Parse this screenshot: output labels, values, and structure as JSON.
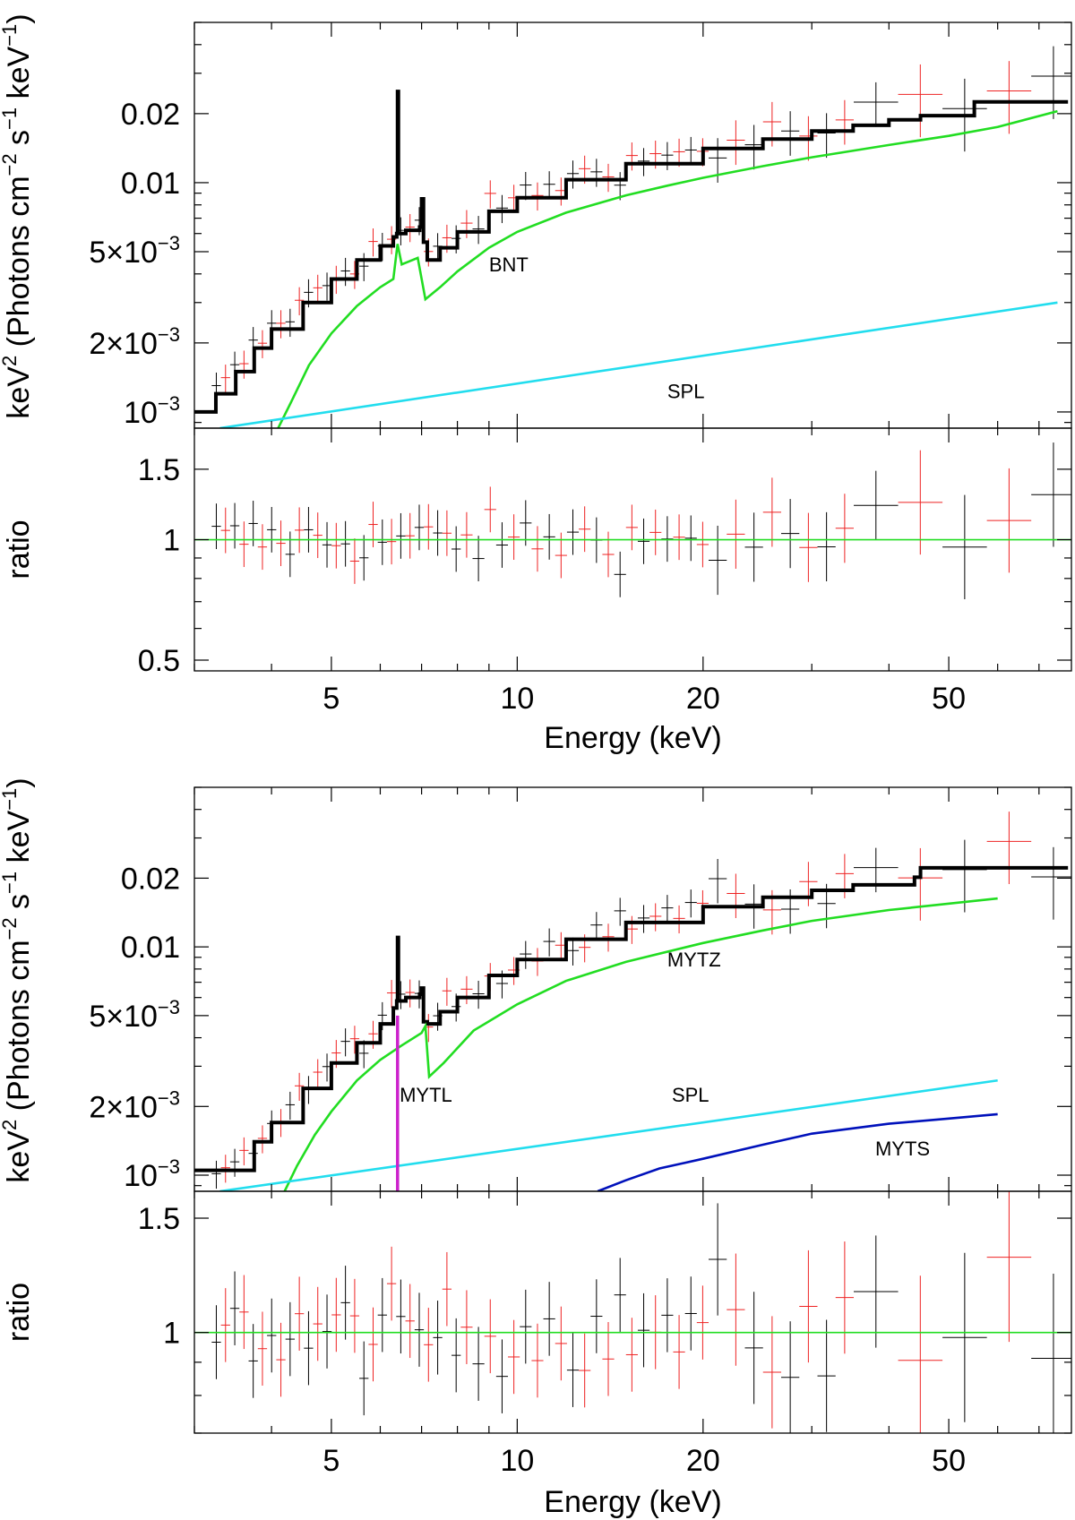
{
  "chart_data": [
    {
      "type": "line",
      "panel": "top",
      "xscale": "log",
      "xlim": [
        3.0,
        79.0
      ],
      "xticks": [
        5,
        10,
        20,
        50
      ],
      "xtick_labels": [
        "5",
        "10",
        "20",
        "50"
      ],
      "xlabel": "Energy (keV)",
      "spectrum": {
        "ylabel_main": "keV",
        "ylabel_sup1": "2",
        "ylabel_mid": " (Photons cm",
        "ylabel_sup2": "−2",
        "ylabel_mid2": " s",
        "ylabel_sup3": "−1",
        "ylabel_mid3": " keV",
        "ylabel_sup4": "−1",
        "ylabel_end": ")",
        "yscale": "log",
        "ylim": [
          0.00085,
          0.05
        ],
        "ytick_values": [
          0.02,
          0.01,
          0.005,
          0.002,
          0.001
        ],
        "ytick_labels": [
          {
            "base": "0.02",
            "sup": ""
          },
          {
            "base": "0.01",
            "sup": ""
          },
          {
            "base": "5×10",
            "sup": "−3"
          },
          {
            "base": "2×10",
            "sup": "−3"
          },
          {
            "base": "10",
            "sup": "−3"
          }
        ],
        "series": [
          {
            "name": "total model",
            "color": "#000000",
            "x": [
              3.0,
              3.25,
              3.5,
              3.75,
              4.0,
              4.5,
              5.0,
              5.5,
              6.0,
              6.3,
              6.38,
              6.4,
              6.42,
              6.6,
              6.95,
              7.0,
              7.05,
              7.15,
              7.5,
              8.0,
              9.0,
              10.0,
              12.0,
              15.0,
              20.0,
              25.0,
              30.0,
              35.0,
              40.0,
              45.0,
              55.0,
              78.0
            ],
            "y": [
              0.001,
              0.0012,
              0.0015,
              0.0019,
              0.0023,
              0.003,
              0.0038,
              0.0046,
              0.0053,
              0.0058,
              0.006,
              0.025,
              0.006,
              0.0062,
              0.0064,
              0.0085,
              0.0055,
              0.0046,
              0.0052,
              0.0061,
              0.0075,
              0.0086,
              0.0103,
              0.0121,
              0.0141,
              0.0155,
              0.0168,
              0.0178,
              0.0188,
              0.0196,
              0.0225,
              0.0225
            ]
          },
          {
            "name": "BNT",
            "color": "#22dd22",
            "x": [
              4.1,
              4.3,
              4.6,
              5.0,
              5.5,
              6.0,
              6.3,
              6.4,
              6.5,
              6.9,
              7.1,
              7.5,
              8.0,
              9.0,
              10.0,
              12.0,
              15.0,
              17.5,
              20.0,
              25.0,
              30.0,
              40.0,
              50.0,
              60.0,
              75.0
            ],
            "y": [
              0.00085,
              0.0011,
              0.0016,
              0.0022,
              0.0029,
              0.0035,
              0.0038,
              0.0054,
              0.0044,
              0.0047,
              0.0031,
              0.0035,
              0.0041,
              0.0052,
              0.0061,
              0.0074,
              0.0088,
              0.0097,
              0.0105,
              0.0118,
              0.0129,
              0.0146,
              0.016,
              0.0175,
              0.0205
            ]
          },
          {
            "name": "SPL",
            "color": "#22ddee",
            "x": [
              3.3,
              75.0
            ],
            "y": [
              0.00085,
              0.003
            ]
          }
        ],
        "annotations": [
          {
            "text": "BNT",
            "x": 9.0,
            "y": 0.0041
          },
          {
            "text": "SPL",
            "x": 17.5,
            "y": 0.00115
          }
        ]
      },
      "ratio": {
        "ylabel": "ratio",
        "yscale": "log",
        "ylim": [
          0.47,
          1.9
        ],
        "ytick_values": [
          1.5,
          1,
          0.5
        ],
        "ytick_labels": [
          "1.5",
          "1",
          "0.5"
        ],
        "reference_line": {
          "y": 1.0,
          "color": "#22dd22"
        }
      }
    },
    {
      "type": "line",
      "panel": "bottom",
      "xscale": "log",
      "xlim": [
        3.0,
        79.0
      ],
      "xticks": [
        5,
        10,
        20,
        50
      ],
      "xtick_labels": [
        "5",
        "10",
        "20",
        "50"
      ],
      "xlabel": "Energy (keV)",
      "spectrum": {
        "ylabel_main": "keV",
        "ylabel_sup1": "2",
        "ylabel_mid": " (Photons cm",
        "ylabel_sup2": "−2",
        "ylabel_mid2": " s",
        "ylabel_sup3": "−1",
        "ylabel_mid3": " keV",
        "ylabel_sup4": "−1",
        "ylabel_end": ")",
        "yscale": "log",
        "ylim": [
          0.00085,
          0.05
        ],
        "ytick_values": [
          0.02,
          0.01,
          0.005,
          0.002,
          0.001
        ],
        "ytick_labels": [
          {
            "base": "0.02",
            "sup": ""
          },
          {
            "base": "0.01",
            "sup": ""
          },
          {
            "base": "5×10",
            "sup": "−3"
          },
          {
            "base": "2×10",
            "sup": "−3"
          },
          {
            "base": "10",
            "sup": "−3"
          }
        ],
        "series": [
          {
            "name": "total model",
            "color": "#000000",
            "x": [
              3.0,
              3.5,
              3.75,
              4.0,
              4.5,
              5.0,
              5.5,
              6.0,
              6.3,
              6.38,
              6.4,
              6.42,
              6.6,
              6.95,
              7.0,
              7.05,
              7.15,
              7.5,
              8.0,
              9.0,
              10.0,
              12.0,
              15.0,
              20.0,
              25.0,
              30.0,
              35.0,
              44.0,
              45.0,
              78.0
            ],
            "y": [
              0.00105,
              0.00105,
              0.0014,
              0.0017,
              0.0024,
              0.0031,
              0.0038,
              0.0046,
              0.0054,
              0.0058,
              0.011,
              0.0058,
              0.006,
              0.0062,
              0.0066,
              0.0047,
              0.0046,
              0.0052,
              0.006,
              0.0075,
              0.0088,
              0.0108,
              0.0128,
              0.015,
              0.0165,
              0.0177,
              0.0187,
              0.0202,
              0.0222,
              0.0222
            ]
          },
          {
            "name": "MYTZ",
            "color": "#22dd22",
            "x": [
              4.2,
              4.4,
              4.7,
              5.0,
              5.5,
              6.0,
              6.5,
              7.0,
              7.1,
              7.2,
              7.6,
              8.5,
              10.0,
              12.0,
              15.0,
              20.0,
              25.0,
              30.0,
              40.0,
              60.0
            ],
            "y": [
              0.00085,
              0.0011,
              0.0015,
              0.0019,
              0.0026,
              0.0032,
              0.0037,
              0.0042,
              0.0045,
              0.0027,
              0.0031,
              0.0043,
              0.0056,
              0.0071,
              0.0086,
              0.0104,
              0.0118,
              0.013,
              0.0145,
              0.0163
            ]
          },
          {
            "name": "SPL",
            "color": "#22ddee",
            "x": [
              3.3,
              60.0
            ],
            "y": [
              0.00085,
              0.0026
            ]
          },
          {
            "name": "MYTS",
            "color": "#0011bb",
            "x": [
              13.5,
              15.0,
              17.0,
              20.0,
              25.0,
              30.0,
              40.0,
              50.0,
              60.0
            ],
            "y": [
              0.00085,
              0.00095,
              0.00107,
              0.00118,
              0.00136,
              0.00152,
              0.00168,
              0.00177,
              0.00185
            ]
          },
          {
            "name": "MYTL",
            "color": "#cc22cc",
            "x": [
              6.4,
              6.4
            ],
            "y": [
              0.005,
              0.00085
            ]
          }
        ],
        "annotations": [
          {
            "text": "MYTZ",
            "x": 17.5,
            "y": 0.0082
          },
          {
            "text": "MYTL",
            "x": 6.45,
            "y": 0.0021
          },
          {
            "text": "SPL",
            "x": 17.8,
            "y": 0.0021
          },
          {
            "text": "MYTS",
            "x": 38.0,
            "y": 0.00122
          }
        ]
      },
      "ratio": {
        "ylabel": "ratio",
        "yscale": "log",
        "ylim": [
          0.7,
          1.65
        ],
        "ytick_values": [
          1.5,
          1
        ],
        "ytick_labels": [
          "1.5",
          "1"
        ],
        "reference_line": {
          "y": 1.0,
          "color": "#22dd22"
        }
      }
    }
  ]
}
